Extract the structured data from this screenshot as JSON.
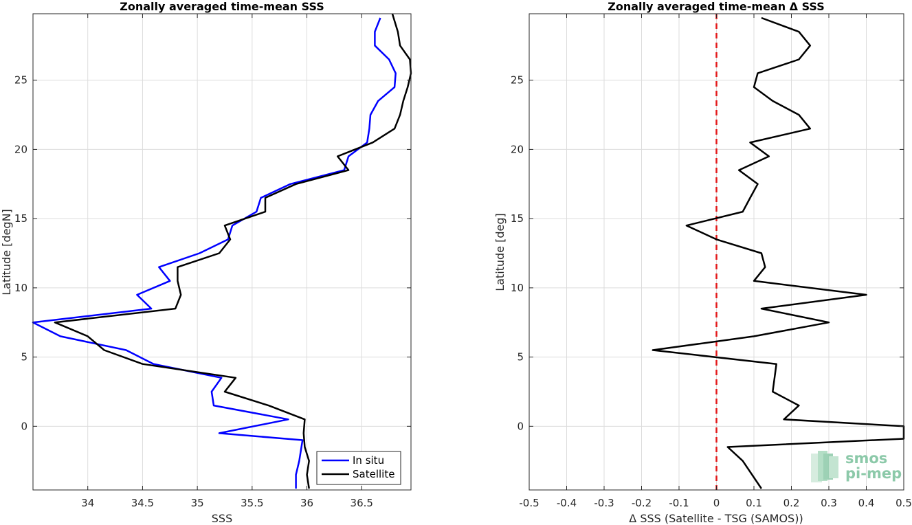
{
  "chart_data": [
    {
      "type": "line",
      "title": "Zonally averaged time-mean SSS",
      "xlabel": "SSS",
      "ylabel": "Latitude [degN]",
      "xlim": [
        33.5,
        36.95
      ],
      "ylim": [
        -4.6,
        29.8
      ],
      "xticks": [
        34,
        34.5,
        35,
        35.5,
        36,
        36.5
      ],
      "yticks": [
        0,
        5,
        10,
        15,
        20,
        25
      ],
      "xtick_labels": [
        "34",
        "34.5",
        "35",
        "35.5",
        "36",
        "36.5"
      ],
      "ytick_labels": [
        "0",
        "5",
        "10",
        "15",
        "20",
        "25"
      ],
      "grid": true,
      "legend_position": "bottom-right",
      "series": [
        {
          "name": "In situ",
          "color": "#0000ff",
          "points": [
            [
              35.9,
              -4.5
            ],
            [
              35.9,
              -3.5
            ],
            [
              35.93,
              -2.5
            ],
            [
              35.95,
              -1.5
            ],
            [
              35.96,
              -1.0
            ],
            [
              35.2,
              -0.5
            ],
            [
              35.83,
              0.5
            ],
            [
              35.15,
              1.5
            ],
            [
              35.13,
              2.5
            ],
            [
              35.22,
              3.5
            ],
            [
              34.6,
              4.5
            ],
            [
              34.35,
              5.5
            ],
            [
              33.75,
              6.5
            ],
            [
              33.5,
              7.5
            ],
            [
              34.58,
              8.5
            ],
            [
              34.45,
              9.5
            ],
            [
              34.75,
              10.5
            ],
            [
              34.65,
              11.5
            ],
            [
              35.02,
              12.5
            ],
            [
              35.28,
              13.5
            ],
            [
              35.32,
              14.5
            ],
            [
              35.54,
              15.5
            ],
            [
              35.58,
              16.5
            ],
            [
              35.85,
              17.5
            ],
            [
              36.34,
              18.5
            ],
            [
              36.38,
              19.5
            ],
            [
              36.55,
              20.5
            ],
            [
              36.57,
              21.5
            ],
            [
              36.58,
              22.5
            ],
            [
              36.65,
              23.5
            ],
            [
              36.8,
              24.5
            ],
            [
              36.81,
              25.5
            ],
            [
              36.75,
              26.5
            ],
            [
              36.62,
              27.5
            ],
            [
              36.62,
              28.5
            ],
            [
              36.67,
              29.5
            ]
          ]
        },
        {
          "name": "Satellite",
          "color": "#000000",
          "points": [
            [
              36.02,
              -4.5
            ],
            [
              36.0,
              -3.5
            ],
            [
              36.02,
              -2.5
            ],
            [
              35.98,
              -1.5
            ],
            [
              35.97,
              -0.5
            ],
            [
              35.98,
              0.5
            ],
            [
              35.65,
              1.5
            ],
            [
              35.25,
              2.5
            ],
            [
              35.35,
              3.5
            ],
            [
              34.5,
              4.5
            ],
            [
              34.15,
              5.5
            ],
            [
              34.0,
              6.5
            ],
            [
              33.7,
              7.5
            ],
            [
              34.8,
              8.5
            ],
            [
              34.85,
              9.5
            ],
            [
              34.82,
              10.5
            ],
            [
              34.82,
              11.5
            ],
            [
              35.2,
              12.5
            ],
            [
              35.3,
              13.5
            ],
            [
              35.25,
              14.5
            ],
            [
              35.62,
              15.5
            ],
            [
              35.62,
              16.5
            ],
            [
              35.9,
              17.5
            ],
            [
              36.38,
              18.5
            ],
            [
              36.28,
              19.5
            ],
            [
              36.6,
              20.5
            ],
            [
              36.8,
              21.5
            ],
            [
              36.85,
              22.5
            ],
            [
              36.88,
              23.5
            ],
            [
              36.92,
              24.5
            ],
            [
              36.95,
              25.5
            ],
            [
              36.94,
              26.5
            ],
            [
              36.85,
              27.5
            ],
            [
              36.83,
              28.5
            ],
            [
              36.78,
              29.8
            ]
          ]
        }
      ]
    },
    {
      "type": "line",
      "title": "Zonally averaged time-mean Δ SSS",
      "xlabel": "Δ SSS (Satellite - TSG (SAMOS))",
      "ylabel": "Latitude [deg]",
      "xlim": [
        -0.5,
        0.5
      ],
      "ylim": [
        -4.6,
        29.8
      ],
      "xticks": [
        -0.5,
        -0.4,
        -0.3,
        -0.2,
        -0.1,
        0,
        0.1,
        0.2,
        0.3,
        0.4,
        0.5
      ],
      "yticks": [
        0,
        5,
        10,
        15,
        20,
        25
      ],
      "xtick_labels": [
        "-0.5",
        "-0.4",
        "-0.3",
        "-0.2",
        "-0.1",
        "0",
        "0.1",
        "0.2",
        "0.3",
        "0.4",
        "0.5"
      ],
      "ytick_labels": [
        "0",
        "5",
        "10",
        "15",
        "20",
        "25"
      ],
      "grid": true,
      "reference_line": {
        "x": 0,
        "color": "#e41a1c",
        "style": "dashed"
      },
      "series": [
        {
          "color": "#000000",
          "points": [
            [
              0.12,
              -4.5
            ],
            [
              0.07,
              -2.5
            ],
            [
              0.03,
              -1.5
            ],
            [
              0.5,
              -0.9
            ],
            [
              0.5,
              0.0
            ],
            [
              0.18,
              0.5
            ],
            [
              0.22,
              1.5
            ],
            [
              0.15,
              2.5
            ],
            [
              0.16,
              4.5
            ],
            [
              -0.17,
              5.5
            ],
            [
              0.1,
              6.5
            ],
            [
              0.3,
              7.5
            ],
            [
              0.12,
              8.5
            ],
            [
              0.4,
              9.5
            ],
            [
              0.1,
              10.5
            ],
            [
              0.13,
              11.5
            ],
            [
              0.12,
              12.5
            ],
            [
              0.0,
              13.5
            ],
            [
              -0.08,
              14.5
            ],
            [
              0.07,
              15.5
            ],
            [
              0.09,
              16.5
            ],
            [
              0.11,
              17.5
            ],
            [
              0.06,
              18.5
            ],
            [
              0.14,
              19.5
            ],
            [
              0.09,
              20.5
            ],
            [
              0.25,
              21.5
            ],
            [
              0.22,
              22.5
            ],
            [
              0.15,
              23.5
            ],
            [
              0.1,
              24.5
            ],
            [
              0.11,
              25.5
            ],
            [
              0.22,
              26.5
            ],
            [
              0.25,
              27.5
            ],
            [
              0.22,
              28.5
            ],
            [
              0.12,
              29.5
            ]
          ]
        }
      ]
    }
  ],
  "logo": {
    "line1": "smos",
    "line2": "pi-mep",
    "color": "#8cc9a9"
  }
}
